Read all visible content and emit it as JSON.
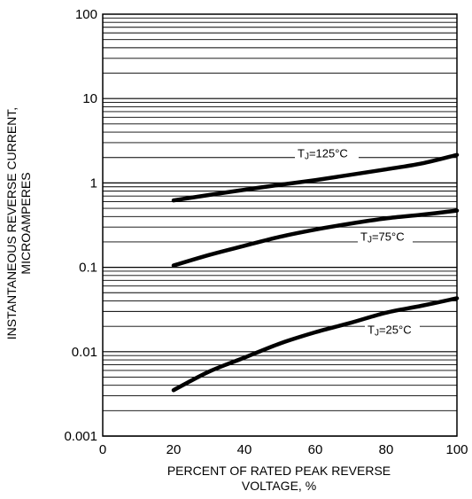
{
  "chart_data": {
    "type": "line",
    "xlabel_lines": [
      "PERCENT OF RATED PEAK REVERSE",
      "VOLTAGE, %"
    ],
    "ylabel_lines": [
      "INSTANTANEOUS REVERSE CURRENT,",
      "MICROAMPERES"
    ],
    "xlim": [
      0,
      100
    ],
    "ylim": [
      0.001,
      100
    ],
    "yscale": "log",
    "grid": true,
    "x_ticks": [
      "0",
      "20",
      "40",
      "60",
      "80",
      "100"
    ],
    "y_ticks": [
      "0.001",
      "0.01",
      "0.1",
      "1",
      "10",
      "100"
    ],
    "series": [
      {
        "name": "TJ=125°C",
        "label_sub": "J",
        "label_rest": "=125°C",
        "x": [
          20,
          30,
          40,
          50,
          60,
          70,
          80,
          90,
          100
        ],
        "y": [
          0.62,
          0.72,
          0.83,
          0.95,
          1.08,
          1.25,
          1.45,
          1.7,
          2.15
        ]
      },
      {
        "name": "TJ=75°C",
        "label_sub": "J",
        "label_rest": "=75°C",
        "x": [
          20,
          30,
          40,
          50,
          60,
          70,
          80,
          90,
          100
        ],
        "y": [
          0.105,
          0.14,
          0.18,
          0.23,
          0.28,
          0.33,
          0.38,
          0.42,
          0.47
        ]
      },
      {
        "name": "TJ=25°C",
        "label_sub": "J",
        "label_rest": "=25°C",
        "x": [
          20,
          30,
          40,
          50,
          60,
          70,
          80,
          90,
          100
        ],
        "y": [
          0.0035,
          0.0058,
          0.0085,
          0.0125,
          0.017,
          0.022,
          0.029,
          0.035,
          0.043
        ]
      }
    ]
  }
}
